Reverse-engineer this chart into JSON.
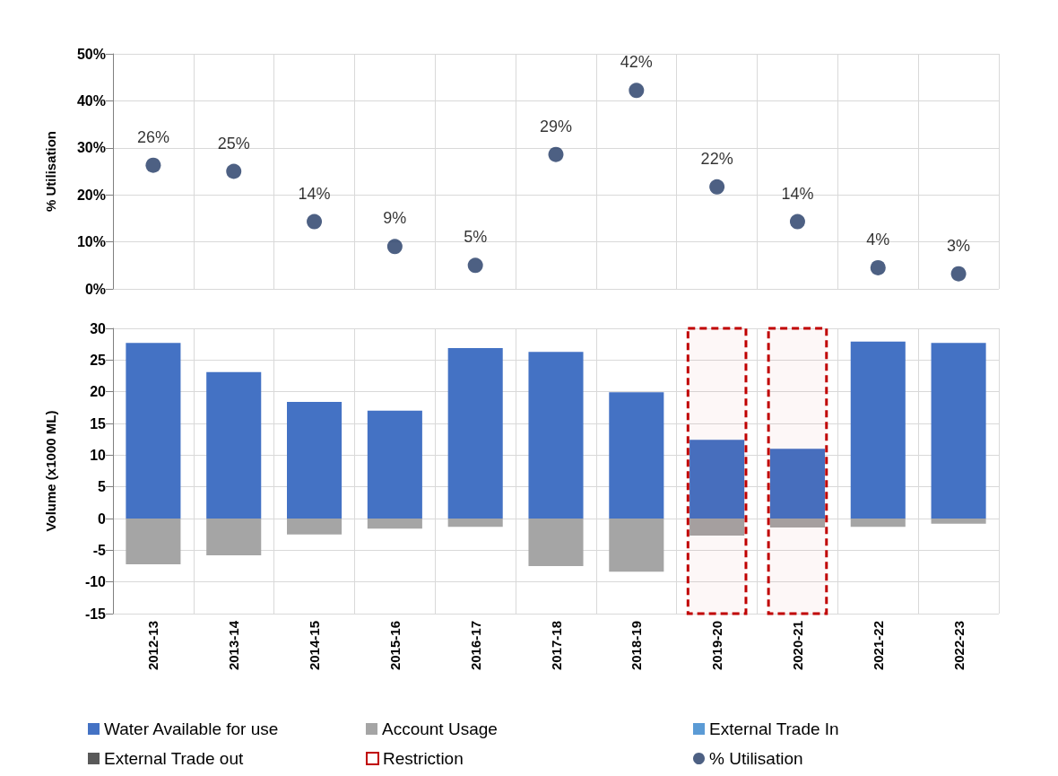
{
  "chart_data": [
    {
      "type": "scatter",
      "categories": [
        "2012-13",
        "2013-14",
        "2014-15",
        "2015-16",
        "2016-17",
        "2017-18",
        "2018-19",
        "2019-20",
        "2020-21",
        "2021-22",
        "2022-23"
      ],
      "series": [
        {
          "name": "% Utilisation",
          "color": "#203864",
          "values": [
            26.3,
            25,
            14.3,
            9,
            5,
            28.6,
            42.2,
            21.7,
            14.3,
            4.5,
            3.2
          ],
          "value_labels": [
            "26%",
            "25%",
            "14%",
            "9%",
            "5%",
            "29%",
            "42%",
            "22%",
            "14%",
            "4%",
            "3%"
          ]
        }
      ],
      "ylabel": "% Utilisation",
      "ylim": [
        0,
        50
      ],
      "yticks": [
        {
          "value": 0,
          "label": "0%"
        },
        {
          "value": 10,
          "label": "10%"
        },
        {
          "value": 20,
          "label": "20%"
        },
        {
          "value": 30,
          "label": "30%"
        },
        {
          "value": 40,
          "label": "40%"
        },
        {
          "value": 50,
          "label": "50%"
        }
      ],
      "grid": true,
      "marker": "circle",
      "tick_labels": "y",
      "legend": "bottom"
    },
    {
      "type": "bar",
      "stacked": true,
      "categories": [
        "2012-13",
        "2013-14",
        "2014-15",
        "2015-16",
        "2016-17",
        "2017-18",
        "2018-19",
        "2019-20",
        "2020-21",
        "2021-22",
        "2022-23"
      ],
      "series": [
        {
          "name": "Water Available for use",
          "color": "#4472c4",
          "values": [
            27.7,
            23.1,
            18.4,
            17.0,
            26.9,
            26.3,
            19.9,
            12.4,
            11.0,
            27.9,
            27.7
          ]
        },
        {
          "name": "Account Usage",
          "color": "#a5a5a5",
          "values": [
            -7.2,
            -5.8,
            -2.5,
            -1.6,
            -1.3,
            -7.5,
            -8.4,
            -2.7,
            -1.4,
            -1.3,
            -0.8
          ]
        },
        {
          "name": "External Trade In",
          "color": "#5b9bd5",
          "values": [
            0,
            0,
            0,
            0,
            0,
            0,
            0,
            0,
            0,
            0,
            0
          ]
        },
        {
          "name": "External Trade out",
          "color": "#595959",
          "values": [
            0,
            0,
            0,
            0,
            0,
            0,
            0,
            0,
            0,
            0,
            0
          ]
        }
      ],
      "ylabel": "Volume (x1000 ML)",
      "ylim": [
        -15,
        30
      ],
      "yticks": [
        -15,
        -10,
        -5,
        0,
        5,
        10,
        15,
        20,
        25,
        30
      ],
      "bands": [
        {
          "axis": "x",
          "from": "2019-20",
          "to": "2019-20",
          "label": "Restriction",
          "color": "#c00000"
        },
        {
          "axis": "x",
          "from": "2020-21",
          "to": "2020-21",
          "color": "#c00000"
        }
      ],
      "grid": true,
      "legend": "bottom"
    }
  ]
}
